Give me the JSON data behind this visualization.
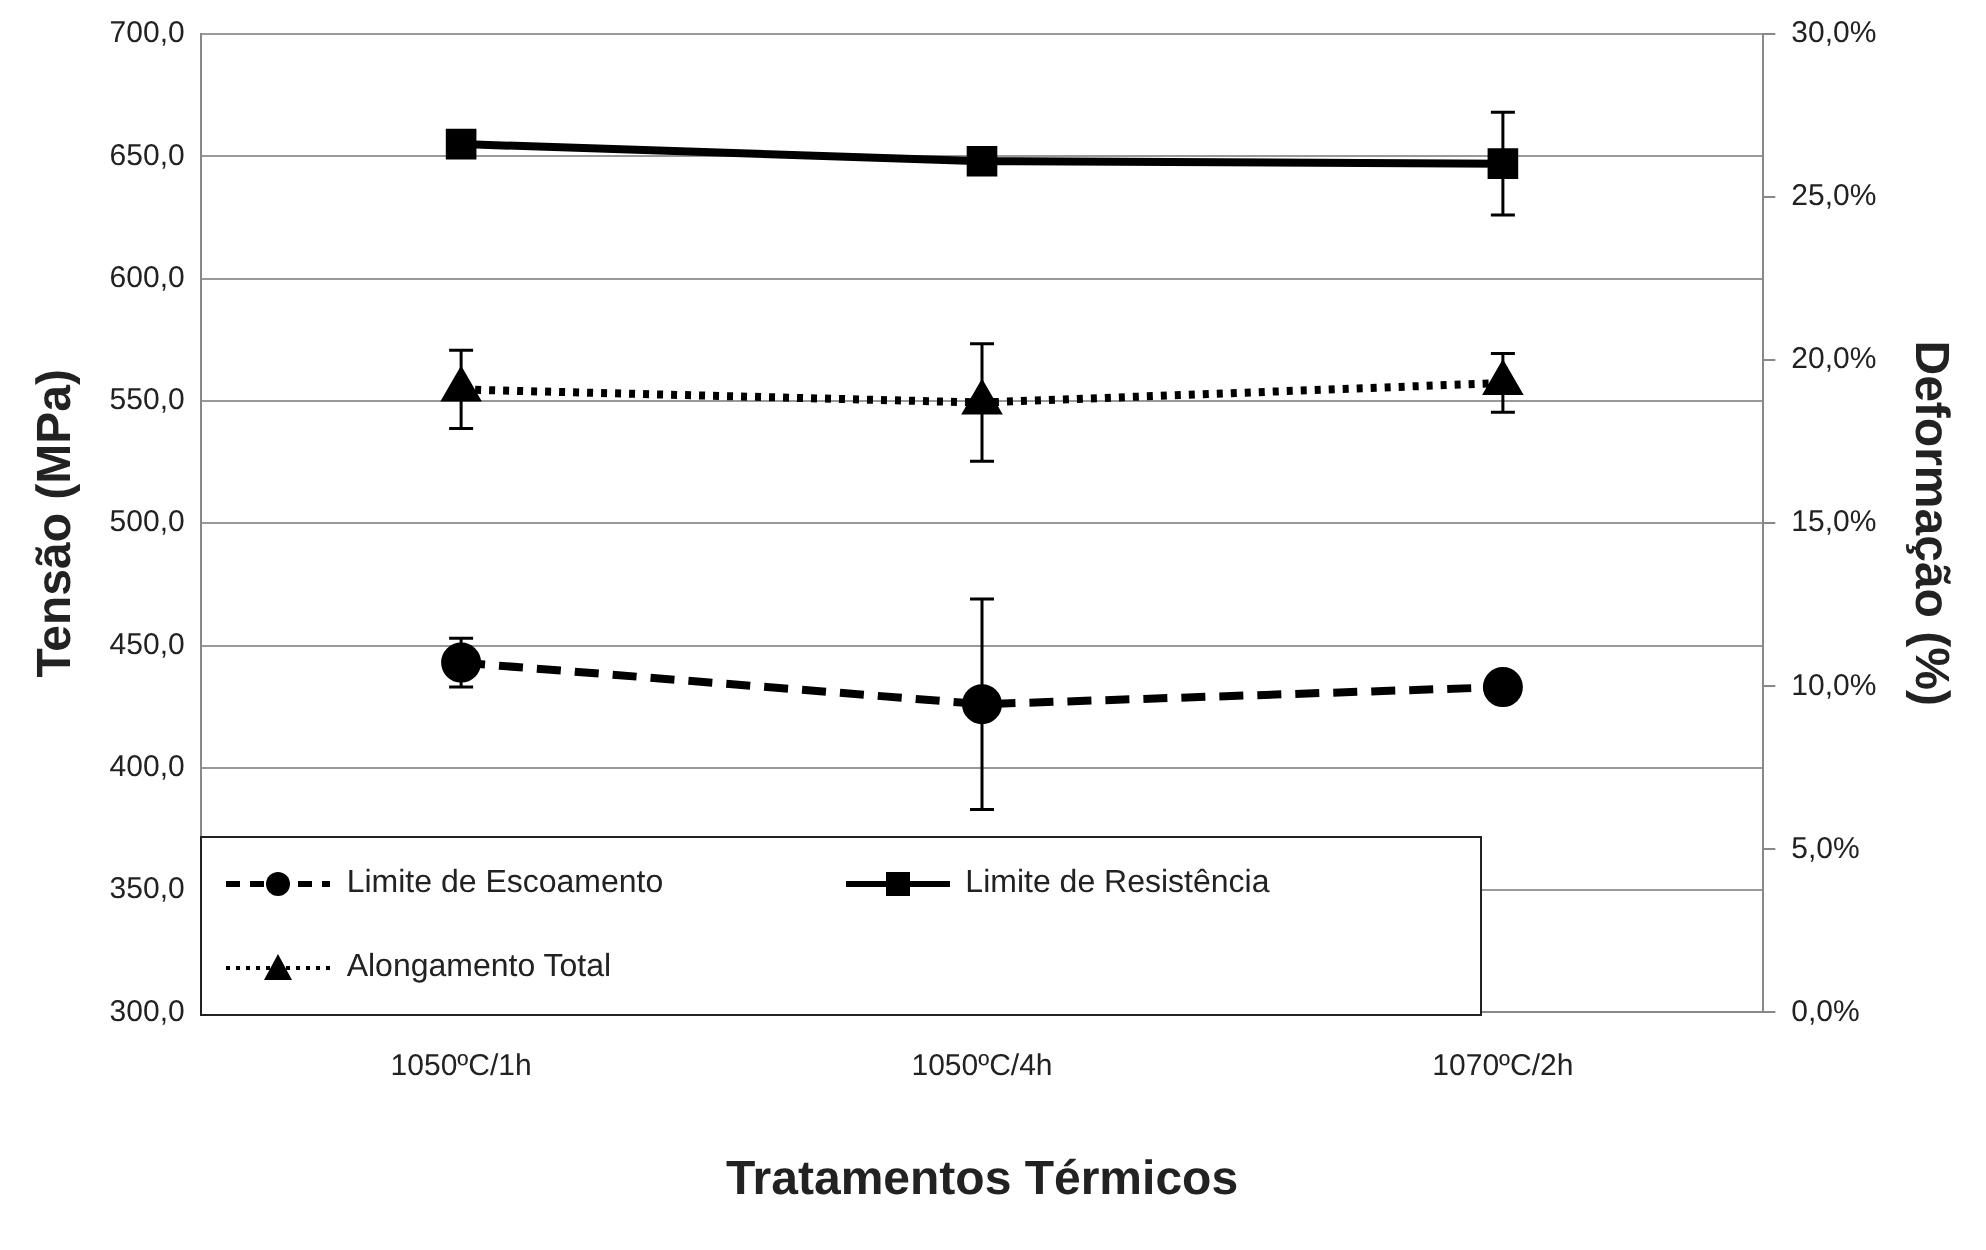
{
  "chart_data": {
    "type": "line",
    "xlabel": "Tratamentos Térmicos",
    "ylabel": "Tensão (MPa)",
    "y2label": "Deformação (%)",
    "categories": [
      "1050ºC/1h",
      "1050ºC/4h",
      "1070ºC/2h"
    ],
    "series": [
      {
        "name": "Limite de Escoamento",
        "color": "#000000",
        "values": [
          443,
          426,
          433
        ],
        "errors": [
          10,
          43,
          null
        ],
        "marker": "circle",
        "line_style": "dashed"
      },
      {
        "name": "Limite de Resistência",
        "color": "#000000",
        "values": [
          655,
          648,
          647
        ],
        "errors": [
          null,
          null,
          21
        ],
        "marker": "square",
        "line_style": "solid"
      },
      {
        "name": "Alongamento Total",
        "color": "#000000",
        "values": [
          19.1,
          18.7,
          19.3
        ],
        "errors": [
          1.2,
          1.8,
          0.9
        ],
        "marker": "triangle",
        "line_style": "dotted",
        "axis": "y2"
      }
    ],
    "ylim": [
      300,
      700
    ],
    "yticks": [
      {
        "value": 300,
        "label": "300,0"
      },
      {
        "value": 350,
        "label": "350,0"
      },
      {
        "value": 400,
        "label": "400,0"
      },
      {
        "value": 450,
        "label": "450,0"
      },
      {
        "value": 500,
        "label": "500,0"
      },
      {
        "value": 550,
        "label": "550,0"
      },
      {
        "value": 600,
        "label": "600,0"
      },
      {
        "value": 650,
        "label": "650,0"
      },
      {
        "value": 700,
        "label": "700,0"
      }
    ],
    "y2lim": [
      0,
      30
    ],
    "y2ticks": [
      {
        "value": 0,
        "label": "0,0%"
      },
      {
        "value": 5,
        "label": "5,0%"
      },
      {
        "value": 10,
        "label": "10,0%"
      },
      {
        "value": 15,
        "label": "15,0%"
      },
      {
        "value": 20,
        "label": "20,0%"
      },
      {
        "value": 25,
        "label": "25,0%"
      },
      {
        "value": 30,
        "label": "30,0%"
      }
    ],
    "grid": "y",
    "legend": "bottom"
  }
}
